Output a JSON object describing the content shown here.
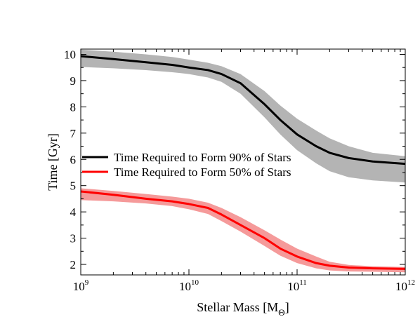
{
  "chart_data": {
    "type": "line",
    "title": "",
    "xlabel": "Stellar Mass [M",
    "xlabel_sub": "Θ",
    "xlabel_close": "]",
    "ylabel": "Time [Gyr]",
    "xscale": "log",
    "xlim": [
      1000000000.0,
      1000000000000.0
    ],
    "ylim": [
      1.6,
      10.2
    ],
    "x_ticks": [
      {
        "base": "10",
        "exp": "9",
        "value": 1000000000.0
      },
      {
        "base": "10",
        "exp": "10",
        "value": 10000000000.0
      },
      {
        "base": "10",
        "exp": "11",
        "value": 100000000000.0
      },
      {
        "base": "10",
        "exp": "12",
        "value": 1000000000000.0
      }
    ],
    "y_ticks": [
      "2",
      "3",
      "4",
      "5",
      "6",
      "7",
      "8",
      "9",
      "10"
    ],
    "grid": false,
    "legend_position": "middle-left",
    "x": [
      1000000000.0,
      2000000000.0,
      4000000000.0,
      7000000000.0,
      10000000000.0,
      15000000000.0,
      20000000000.0,
      30000000000.0,
      50000000000.0,
      70000000000.0,
      100000000000.0,
      150000000000.0,
      200000000000.0,
      300000000000.0,
      500000000000.0,
      1000000000000.0
    ],
    "series": [
      {
        "name": "Time Required to Form 90% of Stars",
        "color": "#000000",
        "band_color": "#b4b4b4",
        "values": [
          9.93,
          9.82,
          9.7,
          9.6,
          9.5,
          9.4,
          9.25,
          8.9,
          8.1,
          7.5,
          6.95,
          6.5,
          6.25,
          6.05,
          5.92,
          5.83
        ],
        "upper": [
          10.18,
          10.1,
          10.0,
          9.9,
          9.8,
          9.68,
          9.55,
          9.25,
          8.6,
          8.05,
          7.55,
          7.1,
          6.8,
          6.5,
          6.25,
          6.12
        ],
        "lower": [
          9.52,
          9.47,
          9.4,
          9.32,
          9.25,
          9.12,
          8.95,
          8.5,
          7.6,
          6.95,
          6.35,
          5.85,
          5.55,
          5.32,
          5.2,
          5.12
        ]
      },
      {
        "name": "Time Required to Form 50% of Stars",
        "color": "#ff0000",
        "band_color": "#f59a9a",
        "values": [
          4.78,
          4.65,
          4.5,
          4.4,
          4.3,
          4.15,
          3.9,
          3.5,
          3.0,
          2.6,
          2.3,
          2.05,
          1.95,
          1.88,
          1.85,
          1.83
        ],
        "upper": [
          4.9,
          4.8,
          4.68,
          4.58,
          4.5,
          4.35,
          4.15,
          3.8,
          3.3,
          2.95,
          2.6,
          2.3,
          2.1,
          1.98,
          1.93,
          1.9
        ],
        "lower": [
          4.45,
          4.4,
          4.32,
          4.22,
          4.1,
          3.92,
          3.65,
          3.25,
          2.7,
          2.33,
          2.05,
          1.85,
          1.77,
          1.73,
          1.72,
          1.7
        ]
      }
    ]
  }
}
